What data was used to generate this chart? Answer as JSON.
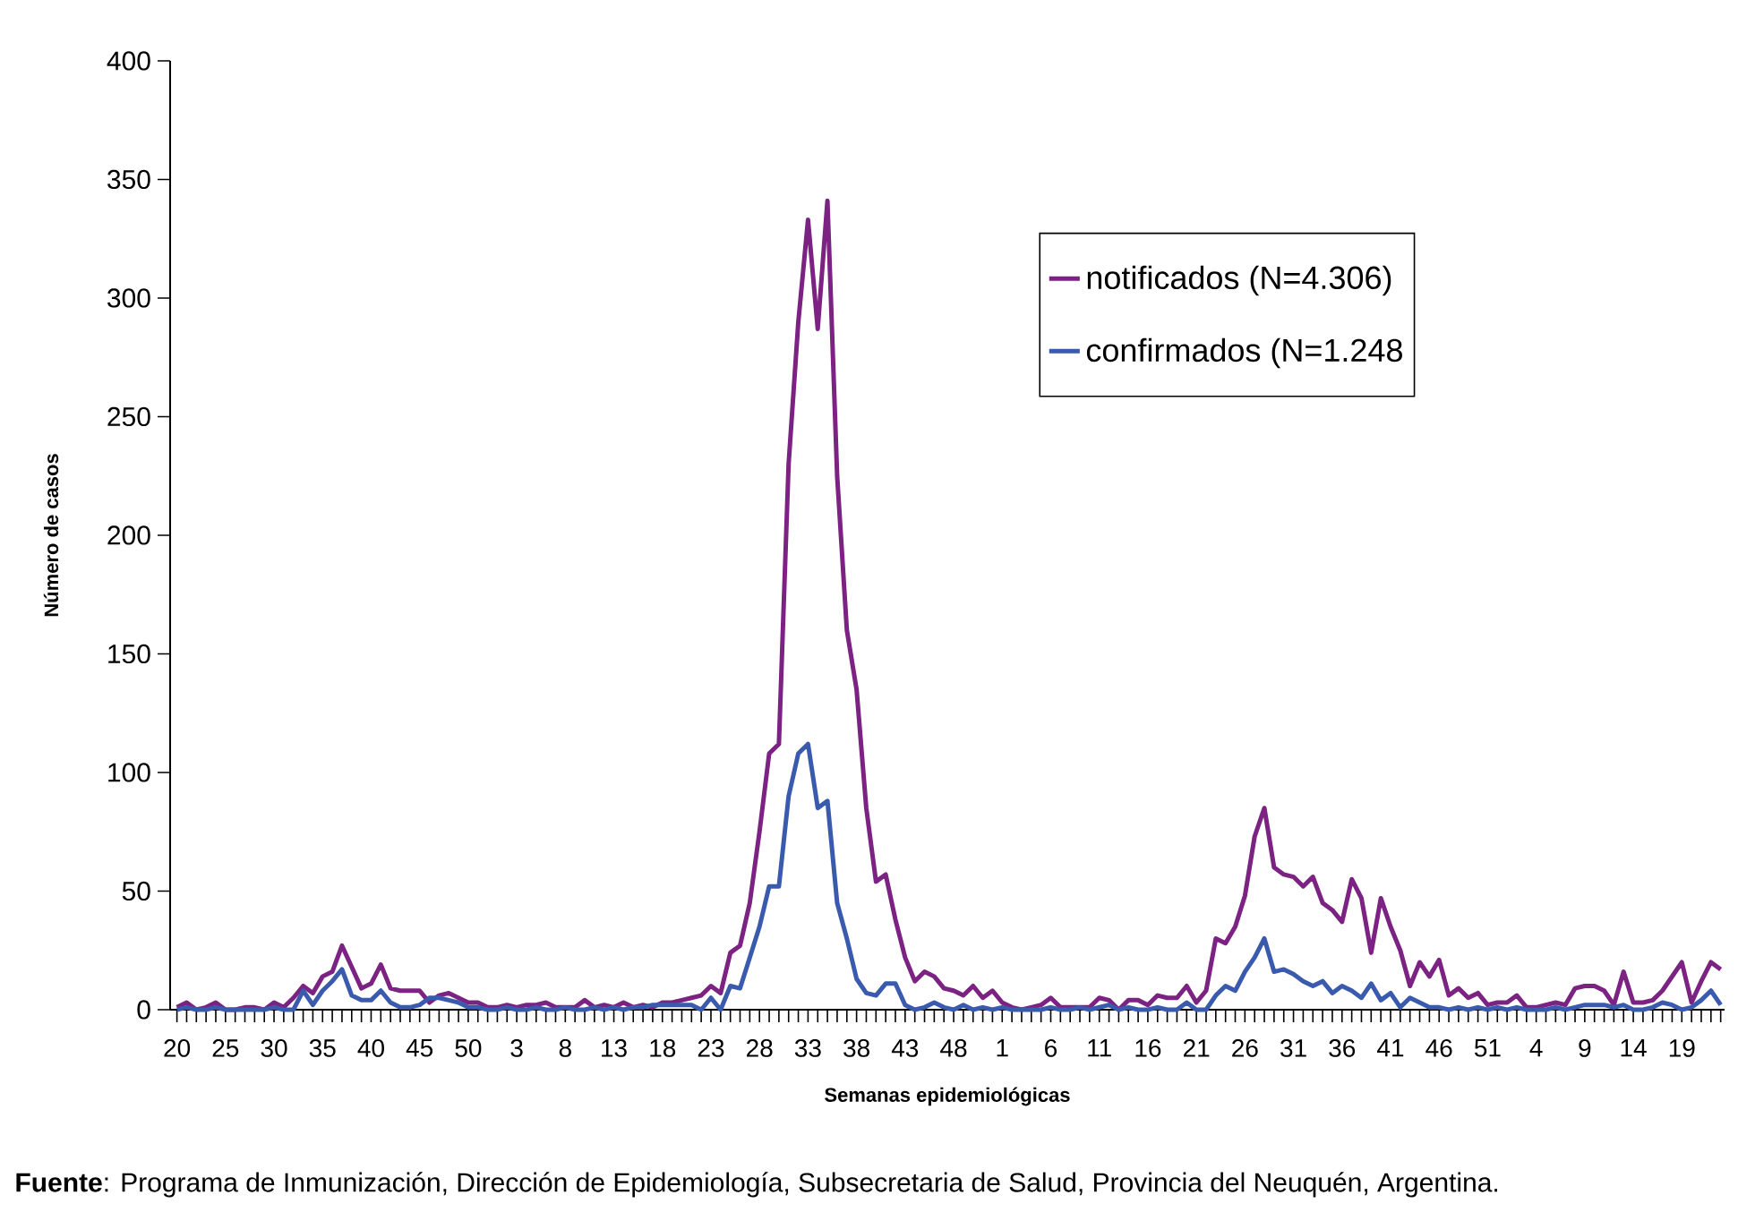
{
  "chart_data": {
    "type": "line",
    "xlabel": "Semanas epidemiológicas",
    "ylabel": "Número de casos",
    "annotations": [
      "**Fuente**: Programa de Inmunización, Dirección de Epidemiología, Subsecretaria de Salud, Provincia del Neuquén, Argentina."
    ],
    "categories": [
      "20",
      null,
      null,
      null,
      null,
      "25",
      null,
      null,
      null,
      null,
      "30",
      null,
      null,
      null,
      null,
      "35",
      null,
      null,
      null,
      null,
      "40",
      null,
      null,
      null,
      null,
      "45",
      null,
      null,
      null,
      null,
      "50",
      null,
      null,
      null,
      null,
      "3",
      null,
      null,
      null,
      null,
      "8",
      null,
      null,
      null,
      null,
      "13",
      null,
      null,
      null,
      null,
      "18",
      null,
      null,
      null,
      null,
      "23",
      null,
      null,
      null,
      null,
      "28",
      null,
      null,
      null,
      null,
      "33",
      null,
      null,
      null,
      null,
      "38",
      null,
      null,
      null,
      null,
      "43",
      null,
      null,
      null,
      null,
      "48",
      null,
      null,
      null,
      null,
      "1",
      null,
      null,
      null,
      null,
      "6",
      null,
      null,
      null,
      null,
      "11",
      null,
      null,
      null,
      null,
      "16",
      null,
      null,
      null,
      null,
      "21",
      null,
      null,
      null,
      null,
      "26",
      null,
      null,
      null,
      null,
      "31",
      null,
      null,
      null,
      null,
      "36",
      null,
      null,
      null,
      null,
      "41",
      null,
      null,
      null,
      null,
      "46",
      null,
      null,
      null,
      null,
      "51",
      null,
      null,
      null,
      null,
      "4",
      null,
      null,
      null,
      null,
      "9",
      null,
      null,
      null,
      null,
      "14",
      null,
      null,
      null,
      null,
      "19",
      null,
      null,
      null,
      null
    ],
    "series": [
      {
        "name": "notificados (N=4.306)",
        "color": "#7b2282",
        "values": [
          1,
          3,
          0,
          1,
          3,
          0,
          0,
          1,
          1,
          0,
          3,
          1,
          5,
          10,
          7,
          14,
          16,
          27,
          18,
          9,
          11,
          19,
          9,
          8,
          8,
          8,
          3,
          6,
          7,
          5,
          3,
          3,
          1,
          1,
          2,
          1,
          2,
          2,
          3,
          1,
          1,
          1,
          4,
          1,
          2,
          1,
          3,
          1,
          2,
          1,
          3,
          3,
          4,
          5,
          6,
          10,
          7,
          24,
          27,
          45,
          75,
          108,
          112,
          230,
          290,
          333,
          287,
          341,
          225,
          160,
          135,
          85,
          54,
          57,
          38,
          22,
          12,
          16,
          14,
          9,
          8,
          6,
          10,
          5,
          8,
          3,
          1,
          0,
          1,
          2,
          5,
          1,
          1,
          1,
          1,
          5,
          4,
          0,
          4,
          4,
          2,
          6,
          5,
          5,
          10,
          3,
          8,
          30,
          28,
          35,
          48,
          73,
          85,
          60,
          57,
          56,
          52,
          56,
          45,
          42,
          37,
          55,
          47,
          24,
          47,
          35,
          25,
          10,
          20,
          14,
          21,
          6,
          9,
          5,
          7,
          2,
          3,
          3,
          6,
          1,
          1,
          2,
          3,
          2,
          9,
          10,
          10,
          8,
          2,
          16,
          3,
          3,
          4,
          8,
          14,
          20,
          3,
          12,
          20,
          17
        ]
      },
      {
        "name": "confirmados (N=1.248",
        "color": "#3a5bad",
        "values": [
          0,
          1,
          0,
          0,
          1,
          0,
          0,
          0,
          0,
          0,
          1,
          0,
          0,
          8,
          2,
          8,
          12,
          17,
          6,
          4,
          4,
          8,
          3,
          1,
          1,
          2,
          5,
          5,
          4,
          3,
          1,
          1,
          0,
          0,
          1,
          0,
          0,
          1,
          0,
          0,
          1,
          0,
          0,
          1,
          0,
          1,
          0,
          1,
          1,
          2,
          2,
          2,
          2,
          2,
          0,
          5,
          0,
          10,
          9,
          22,
          35,
          52,
          52,
          90,
          108,
          112,
          85,
          88,
          45,
          30,
          13,
          7,
          6,
          11,
          11,
          2,
          0,
          1,
          3,
          1,
          0,
          2,
          0,
          1,
          0,
          1,
          0,
          0,
          0,
          0,
          1,
          0,
          0,
          1,
          0,
          1,
          2,
          0,
          1,
          0,
          0,
          1,
          0,
          0,
          3,
          0,
          0,
          6,
          10,
          8,
          16,
          22,
          30,
          16,
          17,
          15,
          12,
          10,
          12,
          7,
          10,
          8,
          5,
          11,
          4,
          7,
          1,
          5,
          3,
          1,
          1,
          0,
          1,
          0,
          1,
          0,
          1,
          0,
          1,
          0,
          0,
          0,
          1,
          0,
          1,
          2,
          2,
          2,
          1,
          2,
          0,
          0,
          1,
          3,
          2,
          0,
          1,
          4,
          8,
          2
        ]
      }
    ],
    "ylim": [
      0,
      400
    ],
    "yticks": [
      0,
      50,
      100,
      150,
      200,
      250,
      300,
      350,
      400
    ],
    "legend": "top right",
    "grid": false,
    "marker": "none",
    "line_style": "solid"
  }
}
